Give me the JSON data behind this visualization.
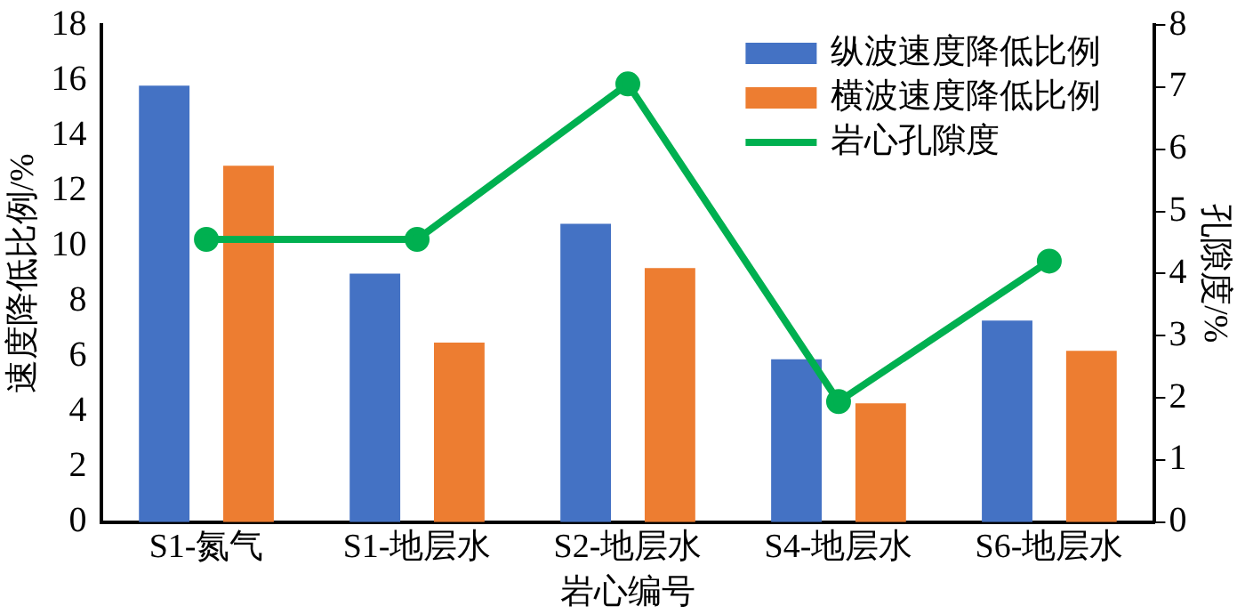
{
  "chart_data": {
    "type": "bar",
    "xlabel": "岩心编号",
    "ylabel": "速度降低比例/%",
    "y2label": "孔隙度/%",
    "categories": [
      "S1-氮气",
      "S1-地层水",
      "S2-地层水",
      "S4-地层水",
      "S6-地层水"
    ],
    "series": [
      {
        "name": "纵波速度降低比例",
        "color": "#4472c4",
        "values": [
          15.8,
          9.0,
          10.8,
          5.9,
          7.3
        ]
      },
      {
        "name": "横波速度降低比例",
        "color": "#ed7d31",
        "values": [
          12.9,
          6.5,
          9.2,
          4.3,
          6.2
        ]
      },
      {
        "name": "岩心孔隙度",
        "type": "line",
        "axis": "y2",
        "color": "#00b050",
        "values": [
          4.55,
          4.55,
          7.05,
          1.94,
          4.2
        ]
      }
    ],
    "ylim": [
      0,
      18
    ],
    "yticks": [
      0,
      2,
      4,
      6,
      8,
      10,
      12,
      14,
      16,
      18
    ],
    "y2lim": [
      0,
      8
    ],
    "y2ticks": [
      0,
      1,
      2,
      3,
      4,
      5,
      6,
      7,
      8
    ],
    "legend": "top right",
    "marker": "circle",
    "grid": false
  }
}
